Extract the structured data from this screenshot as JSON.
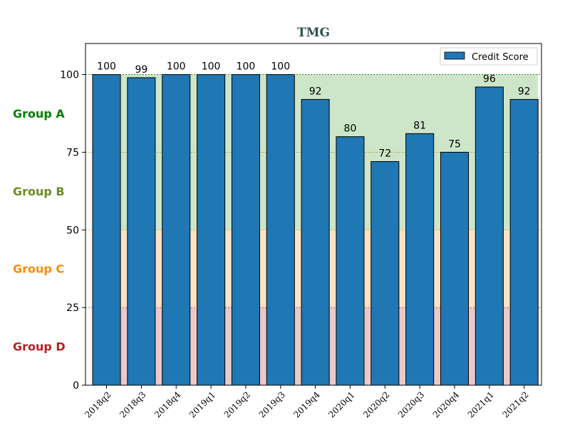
{
  "chart_data": {
    "type": "bar",
    "title": "TMG",
    "categories": [
      "2018q2",
      "2018q3",
      "2018q4",
      "2019q1",
      "2019q2",
      "2019q3",
      "2019q4",
      "2020q1",
      "2020q2",
      "2020q3",
      "2020q4",
      "2021q1",
      "2021q2"
    ],
    "series": [
      {
        "name": "Credit Score",
        "values": [
          100,
          99,
          100,
          100,
          100,
          100,
          92,
          80,
          72,
          81,
          75,
          96,
          92
        ],
        "color": "#1f77b4"
      }
    ],
    "ylim": [
      0,
      110
    ],
    "yticks": [
      0,
      25,
      50,
      75,
      100
    ],
    "legend_position": "top-right",
    "bands": [
      {
        "label": "Group A",
        "from": 75,
        "to": 100,
        "fill": "#cde5c9",
        "label_color": "#008000",
        "line_color": "#008000"
      },
      {
        "label": "Group B",
        "from": 50,
        "to": 75,
        "fill": "#cde5c9",
        "label_color": "#6b8e23",
        "line_color": "#b8860b"
      },
      {
        "label": "Group C",
        "from": 25,
        "to": 50,
        "fill": "#fde3c4",
        "label_color": "#ff8c00",
        "line_color": "#ff8c00"
      },
      {
        "label": "Group D",
        "from": 0,
        "to": 25,
        "fill": "#ecc9c9",
        "label_color": "#b22222",
        "line_color": "#b22222"
      }
    ]
  }
}
